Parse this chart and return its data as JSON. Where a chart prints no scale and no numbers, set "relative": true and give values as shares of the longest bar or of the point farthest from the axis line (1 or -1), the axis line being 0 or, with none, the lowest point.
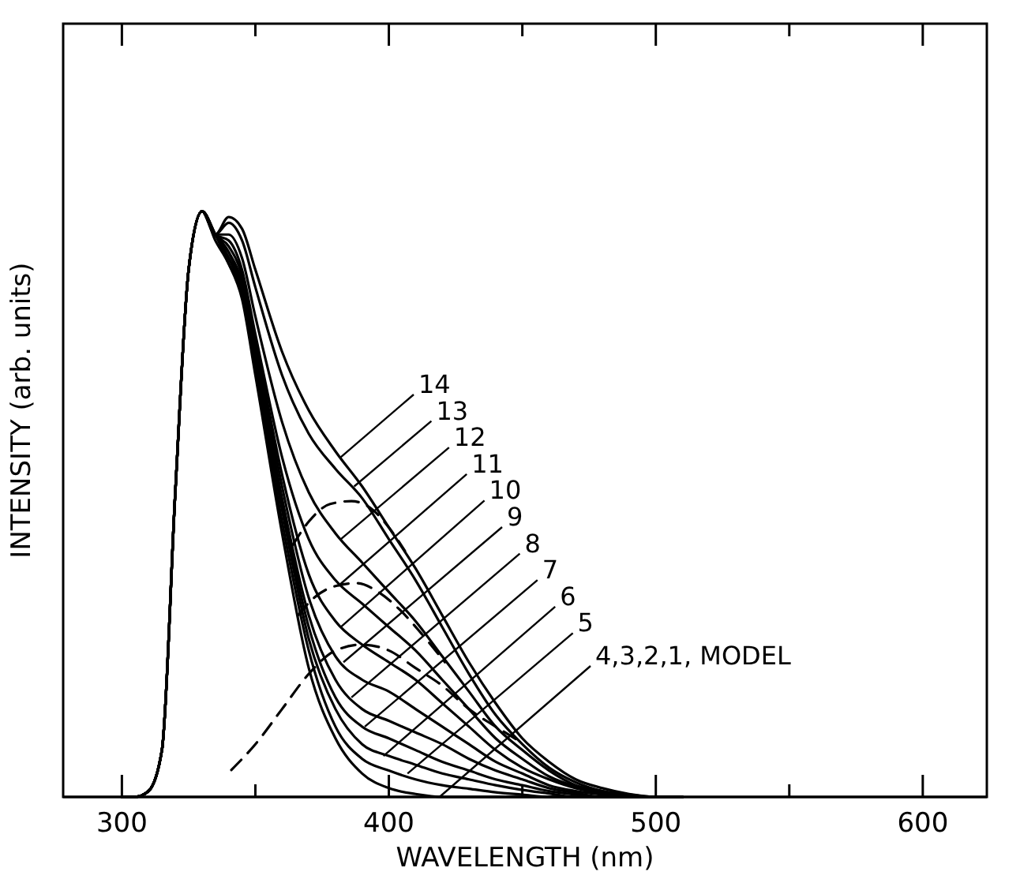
{
  "chart_data": {
    "type": "line",
    "xlabel": "WAVELENGTH (nm)",
    "ylabel": "INTENSITY (arb. units)",
    "relative": true,
    "grid": false,
    "xlim": [
      278,
      624
    ],
    "xticks": [
      300,
      {
        "value": 350,
        "label": null
      },
      400,
      {
        "value": 450,
        "label": null
      },
      500,
      {
        "value": 550,
        "label": null
      },
      600
    ],
    "x": [
      300,
      305,
      310,
      315,
      320,
      325,
      330,
      335,
      340,
      345,
      350,
      360,
      370,
      380,
      390,
      400,
      410,
      420,
      430,
      440,
      450,
      460,
      470,
      480,
      490,
      500,
      510
    ],
    "series": [
      {
        "color": "#000000",
        "values": [
          0,
          0,
          0.01,
          0.08,
          0.52,
          0.9,
          1.0,
          0.96,
          0.99,
          0.97,
          0.9,
          0.76,
          0.66,
          0.59,
          0.53,
          0.46,
          0.39,
          0.31,
          0.23,
          0.16,
          0.1,
          0.06,
          0.03,
          0.015,
          0.005,
          0,
          0
        ]
      },
      {
        "color": "#000000",
        "values": [
          0,
          0,
          0.01,
          0.08,
          0.52,
          0.9,
          1.0,
          0.96,
          0.98,
          0.95,
          0.87,
          0.72,
          0.62,
          0.56,
          0.51,
          0.44,
          0.37,
          0.29,
          0.21,
          0.14,
          0.09,
          0.05,
          0.025,
          0.01,
          0.004,
          0,
          0
        ]
      },
      {
        "color": "#000000",
        "values": [
          0,
          0,
          0.01,
          0.08,
          0.52,
          0.9,
          1.0,
          0.96,
          0.96,
          0.92,
          0.82,
          0.64,
          0.52,
          0.45,
          0.4,
          0.35,
          0.3,
          0.24,
          0.18,
          0.12,
          0.08,
          0.045,
          0.02,
          0.01,
          0.003,
          0,
          0
        ]
      },
      {
        "color": "#000000",
        "values": [
          0,
          0,
          0.01,
          0.08,
          0.52,
          0.9,
          1.0,
          0.96,
          0.95,
          0.9,
          0.79,
          0.58,
          0.44,
          0.37,
          0.33,
          0.29,
          0.25,
          0.2,
          0.15,
          0.1,
          0.065,
          0.035,
          0.018,
          0.008,
          0.002,
          0,
          0
        ]
      },
      {
        "color": "#000000",
        "values": [
          0,
          0,
          0.01,
          0.08,
          0.52,
          0.9,
          1.0,
          0.96,
          0.94,
          0.89,
          0.78,
          0.55,
          0.38,
          0.3,
          0.26,
          0.23,
          0.2,
          0.16,
          0.12,
          0.08,
          0.05,
          0.03,
          0.015,
          0.006,
          0,
          0,
          0
        ]
      },
      {
        "color": "#000000",
        "values": [
          0,
          0,
          0.01,
          0.08,
          0.52,
          0.9,
          1.0,
          0.96,
          0.93,
          0.88,
          0.77,
          0.53,
          0.34,
          0.24,
          0.2,
          0.18,
          0.15,
          0.12,
          0.09,
          0.06,
          0.04,
          0.02,
          0.01,
          0.004,
          0,
          0,
          0
        ]
      },
      {
        "color": "#000000",
        "values": [
          0,
          0,
          0.01,
          0.08,
          0.52,
          0.9,
          1.0,
          0.96,
          0.93,
          0.87,
          0.76,
          0.51,
          0.31,
          0.2,
          0.15,
          0.13,
          0.11,
          0.09,
          0.065,
          0.045,
          0.03,
          0.015,
          0.007,
          0,
          0,
          0,
          0
        ]
      },
      {
        "color": "#000000",
        "values": [
          0,
          0,
          0.01,
          0.08,
          0.52,
          0.9,
          1.0,
          0.96,
          0.92,
          0.87,
          0.75,
          0.5,
          0.29,
          0.17,
          0.12,
          0.1,
          0.08,
          0.06,
          0.045,
          0.03,
          0.02,
          0.01,
          0.004,
          0,
          0,
          0,
          0
        ]
      },
      {
        "color": "#000000",
        "values": [
          0,
          0,
          0.01,
          0.08,
          0.52,
          0.9,
          1.0,
          0.96,
          0.92,
          0.86,
          0.74,
          0.49,
          0.27,
          0.15,
          0.09,
          0.07,
          0.055,
          0.04,
          0.03,
          0.02,
          0.012,
          0.006,
          0,
          0,
          0,
          0,
          0
        ]
      },
      {
        "color": "#000000",
        "values": [
          0,
          0,
          0.01,
          0.08,
          0.52,
          0.9,
          1.0,
          0.96,
          0.91,
          0.86,
          0.73,
          0.47,
          0.25,
          0.12,
          0.065,
          0.045,
          0.03,
          0.02,
          0.014,
          0.008,
          0.004,
          0,
          0,
          0,
          0,
          0,
          0
        ]
      },
      {
        "color": "#000000",
        "values": [
          0,
          0,
          0.01,
          0.08,
          0.52,
          0.9,
          1.0,
          0.95,
          0.91,
          0.85,
          0.72,
          0.45,
          0.22,
          0.1,
          0.04,
          0.015,
          0.005,
          0,
          0,
          0,
          0,
          0,
          0,
          0,
          0,
          0,
          0
        ]
      },
      {
        "color": "#000000",
        "line_style": "dashed",
        "x": [
          364,
          370,
          378,
          386,
          394,
          400,
          406
        ],
        "values": [
          0.43,
          0.47,
          0.5,
          0.505,
          0.49,
          0.46,
          0.42
        ]
      },
      {
        "color": "#000000",
        "line_style": "dashed",
        "x": [
          366,
          372,
          380,
          388,
          396,
          404,
          412,
          421
        ],
        "values": [
          0.31,
          0.34,
          0.36,
          0.365,
          0.35,
          0.32,
          0.28,
          0.23
        ]
      },
      {
        "color": "#000000",
        "line_style": "dashed",
        "x": [
          341,
          350,
          360,
          370,
          380,
          390,
          400,
          410,
          420,
          430,
          440,
          449
        ],
        "values": [
          0.046,
          0.09,
          0.15,
          0.21,
          0.25,
          0.26,
          0.25,
          0.22,
          0.19,
          0.15,
          0.12,
          0.095
        ]
      }
    ],
    "annotations": [
      {
        "text": "14",
        "x": 382,
        "y": 0.58
      },
      {
        "text": "13",
        "x": 387,
        "y": 0.53
      },
      {
        "text": "12",
        "x": 382,
        "y": 0.44
      },
      {
        "text": "11",
        "x": 381,
        "y": 0.36
      },
      {
        "text": "10",
        "x": 382,
        "y": 0.29
      },
      {
        "text": "9",
        "x": 383,
        "y": 0.23
      },
      {
        "text": "8",
        "x": 386,
        "y": 0.17
      },
      {
        "text": "7",
        "x": 391,
        "y": 0.12
      },
      {
        "text": "6",
        "x": 398,
        "y": 0.07
      },
      {
        "text": "5",
        "x": 407,
        "y": 0.04
      },
      {
        "text": "4,3,2,1, MODEL",
        "x": 419,
        "y": 0
      }
    ]
  }
}
